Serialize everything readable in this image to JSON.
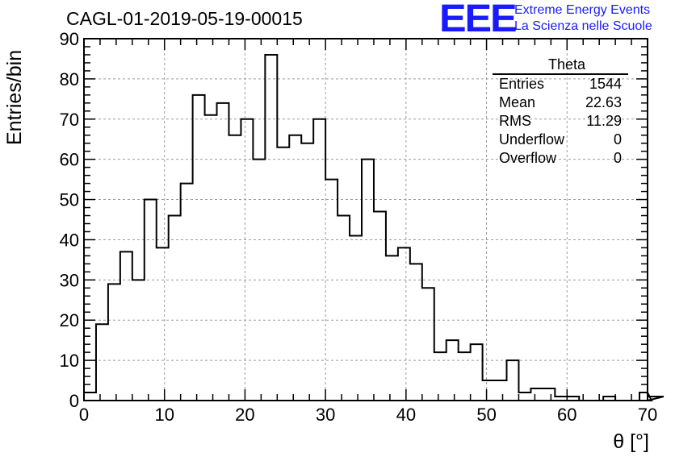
{
  "title": "CAGL-01-2019-05-19-00015",
  "logo": {
    "mark": "EEE",
    "line1": "Extreme Energy Events",
    "line2": "La Scienza nelle Scuole",
    "color": "#1a1aff"
  },
  "stats": {
    "name": "Theta",
    "rows": [
      {
        "label": "Entries",
        "value": "1544"
      },
      {
        "label": "Mean",
        "value": "22.63"
      },
      {
        "label": "RMS",
        "value": "11.29"
      },
      {
        "label": "Underflow",
        "value": "0"
      },
      {
        "label": "Overflow",
        "value": "0"
      }
    ]
  },
  "chart_data": {
    "type": "bar",
    "histogram": true,
    "xlabel": "θ [°]",
    "ylabel": "Entries/bin",
    "xlim": [
      0,
      70
    ],
    "ylim": [
      0,
      90
    ],
    "bin_width": 1.5,
    "x_ticks": [
      0,
      10,
      20,
      30,
      40,
      50,
      60,
      70
    ],
    "y_ticks": [
      0,
      10,
      20,
      30,
      40,
      50,
      60,
      70,
      80,
      90
    ],
    "grid": true,
    "values": [
      2,
      19,
      29,
      37,
      30,
      50,
      38,
      46,
      54,
      76,
      71,
      74,
      66,
      70,
      60,
      86,
      63,
      66,
      64,
      70,
      55,
      46,
      41,
      60,
      47,
      36,
      38,
      34,
      28,
      12,
      15,
      12,
      14,
      5,
      5,
      10,
      2,
      3,
      3,
      1,
      1,
      0,
      0,
      1,
      0,
      0,
      2,
      0,
      1
    ]
  }
}
